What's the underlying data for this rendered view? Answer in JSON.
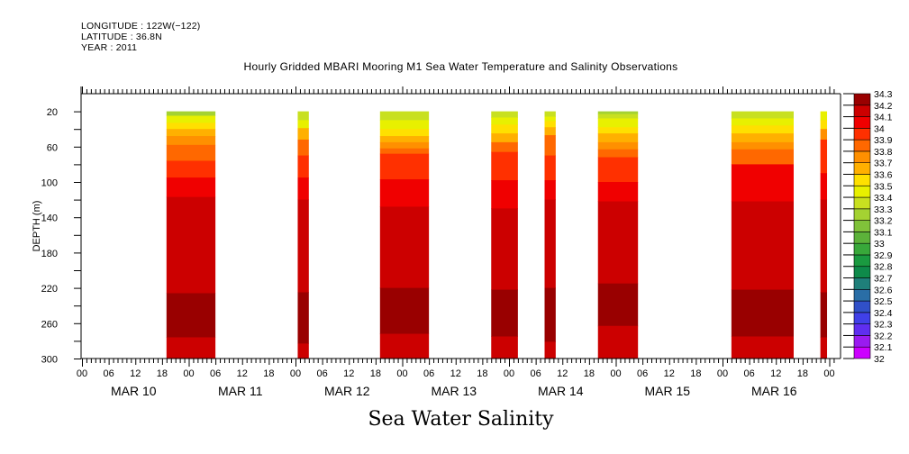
{
  "header": {
    "longitude": "LONGITUDE : 122W(−122)",
    "latitude": "LATITUDE : 36.8N",
    "year": "YEAR : 2011"
  },
  "chart_data": {
    "type": "heatmap",
    "title": "Hourly Gridded MBARI Mooring M1 Sea Water Temperature and Salinity Observations",
    "bottom_title": "Sea Water Salinity",
    "ylabel": "DEPTH (m)",
    "xlabel": "",
    "ylim": [
      0,
      300
    ],
    "y_inverted": true,
    "y_ticks": [
      20,
      60,
      100,
      140,
      180,
      220,
      260,
      300
    ],
    "x_range_hours": [
      0,
      169
    ],
    "x_origin": "MAR 10 00:00",
    "x_tick_labels": [
      "00",
      "06",
      "12",
      "18",
      "00",
      "06",
      "12",
      "18",
      "00",
      "06",
      "12",
      "18",
      "00",
      "06",
      "12",
      "18",
      "00",
      "06",
      "12",
      "18",
      "00",
      "06",
      "12",
      "18",
      "00",
      "06",
      "12",
      "18",
      "00"
    ],
    "day_labels": [
      "MAR 10",
      "MAR 11",
      "MAR 12",
      "MAR 13",
      "MAR 14",
      "MAR 15",
      "MAR 16"
    ],
    "colorbar": {
      "levels": [
        32,
        32.1,
        32.2,
        32.3,
        32.4,
        32.5,
        32.6,
        32.7,
        32.8,
        32.9,
        33,
        33.1,
        33.2,
        33.3,
        33.4,
        33.5,
        33.6,
        33.7,
        33.8,
        33.9,
        34,
        34.1,
        34.2,
        34.3
      ],
      "colors": [
        "#cc00ff",
        "#9a1bf0",
        "#5f2ef0",
        "#4040e8",
        "#3050c8",
        "#2a6ea6",
        "#1f7f7a",
        "#0e8a4a",
        "#1a9a40",
        "#38a83a",
        "#5cb23a",
        "#80c23a",
        "#a4d232",
        "#c8e020",
        "#e8f000",
        "#ffe000",
        "#ffb000",
        "#ff9000",
        "#ff6800",
        "#ff3000",
        "#f00000",
        "#cc0000",
        "#990000"
      ]
    },
    "observation_blocks": [
      {
        "start_hour": 19,
        "end_hour": 30,
        "profile_top_to_bottom": [
          {
            "value_band": "33.2-33.3",
            "to_depth": 25
          },
          {
            "value_band": "33.4-33.5",
            "to_depth": 33
          },
          {
            "value_band": "33.5-33.6",
            "to_depth": 40
          },
          {
            "value_band": "33.6-33.7",
            "to_depth": 48
          },
          {
            "value_band": "33.7-33.8",
            "to_depth": 58
          },
          {
            "value_band": "33.8-33.9",
            "to_depth": 76
          },
          {
            "value_band": "33.9-34.0",
            "to_depth": 95
          },
          {
            "value_band": "34.0-34.1",
            "to_depth": 117
          },
          {
            "value_band": "34.1-34.2",
            "to_depth": 226
          },
          {
            "value_band": "34.2-34.3",
            "to_depth": 276
          },
          {
            "value_band": "34.1-34.2",
            "to_depth": 300
          }
        ]
      },
      {
        "start_hour": 48.5,
        "end_hour": 51,
        "profile_top_to_bottom": [
          {
            "value_band": "33.3-33.4",
            "to_depth": 30
          },
          {
            "value_band": "33.4-33.5",
            "to_depth": 39
          },
          {
            "value_band": "33.6-33.7",
            "to_depth": 52
          },
          {
            "value_band": "33.8-33.9",
            "to_depth": 70
          },
          {
            "value_band": "33.9-34.0",
            "to_depth": 95
          },
          {
            "value_band": "34.0-34.1",
            "to_depth": 120
          },
          {
            "value_band": "34.1-34.2",
            "to_depth": 225
          },
          {
            "value_band": "34.2-34.3",
            "to_depth": 283
          },
          {
            "value_band": "34.1-34.2",
            "to_depth": 300
          }
        ]
      },
      {
        "start_hour": 67,
        "end_hour": 78,
        "profile_top_to_bottom": [
          {
            "value_band": "33.3-33.4",
            "to_depth": 30
          },
          {
            "value_band": "33.4-33.5",
            "to_depth": 40
          },
          {
            "value_band": "33.5-33.6",
            "to_depth": 48
          },
          {
            "value_band": "33.6-33.7",
            "to_depth": 55
          },
          {
            "value_band": "33.7-33.8",
            "to_depth": 62
          },
          {
            "value_band": "33.8-33.9",
            "to_depth": 68
          },
          {
            "value_band": "33.9-34.0",
            "to_depth": 97
          },
          {
            "value_band": "34.0-34.1",
            "to_depth": 128
          },
          {
            "value_band": "34.1-34.2",
            "to_depth": 220
          },
          {
            "value_band": "34.2-34.3",
            "to_depth": 272
          },
          {
            "value_band": "34.1-34.2",
            "to_depth": 300
          }
        ]
      },
      {
        "start_hour": 92,
        "end_hour": 98,
        "profile_top_to_bottom": [
          {
            "value_band": "33.3-33.4",
            "to_depth": 27
          },
          {
            "value_band": "33.4-33.5",
            "to_depth": 35
          },
          {
            "value_band": "33.5-33.6",
            "to_depth": 45
          },
          {
            "value_band": "33.6-33.7",
            "to_depth": 55
          },
          {
            "value_band": "33.8-33.9",
            "to_depth": 66
          },
          {
            "value_band": "33.9-34.0",
            "to_depth": 98
          },
          {
            "value_band": "34.0-34.1",
            "to_depth": 130
          },
          {
            "value_band": "34.1-34.2",
            "to_depth": 222
          },
          {
            "value_band": "34.2-34.3",
            "to_depth": 275
          },
          {
            "value_band": "34.1-34.2",
            "to_depth": 300
          }
        ]
      },
      {
        "start_hour": 104,
        "end_hour": 106.5,
        "profile_top_to_bottom": [
          {
            "value_band": "33.3-33.4",
            "to_depth": 26
          },
          {
            "value_band": "33.4-33.5",
            "to_depth": 31
          },
          {
            "value_band": "33.5-33.6",
            "to_depth": 38
          },
          {
            "value_band": "33.6-33.7",
            "to_depth": 47
          },
          {
            "value_band": "33.8-33.9",
            "to_depth": 70
          },
          {
            "value_band": "33.9-34.0",
            "to_depth": 98
          },
          {
            "value_band": "34.0-34.1",
            "to_depth": 120
          },
          {
            "value_band": "34.1-34.2",
            "to_depth": 220
          },
          {
            "value_band": "34.2-34.3",
            "to_depth": 281
          },
          {
            "value_band": "34.1-34.2",
            "to_depth": 300
          }
        ]
      },
      {
        "start_hour": 116,
        "end_hour": 125,
        "profile_top_to_bottom": [
          {
            "value_band": "33.2-33.3",
            "to_depth": 23
          },
          {
            "value_band": "33.3-33.4",
            "to_depth": 28
          },
          {
            "value_band": "33.4-33.5",
            "to_depth": 38
          },
          {
            "value_band": "33.5-33.6",
            "to_depth": 45
          },
          {
            "value_band": "33.6-33.7",
            "to_depth": 55
          },
          {
            "value_band": "33.7-33.8",
            "to_depth": 63
          },
          {
            "value_band": "33.8-33.9",
            "to_depth": 72
          },
          {
            "value_band": "33.9-34.0",
            "to_depth": 100
          },
          {
            "value_band": "34.0-34.1",
            "to_depth": 122
          },
          {
            "value_band": "34.1-34.2",
            "to_depth": 215
          },
          {
            "value_band": "34.2-34.3",
            "to_depth": 263
          },
          {
            "value_band": "34.1-34.2",
            "to_depth": 300
          }
        ]
      },
      {
        "start_hour": 146,
        "end_hour": 160,
        "profile_top_to_bottom": [
          {
            "value_band": "33.3-33.4",
            "to_depth": 28
          },
          {
            "value_band": "33.4-33.5",
            "to_depth": 36
          },
          {
            "value_band": "33.5-33.6",
            "to_depth": 45
          },
          {
            "value_band": "33.6-33.7",
            "to_depth": 55
          },
          {
            "value_band": "33.7-33.8",
            "to_depth": 63
          },
          {
            "value_band": "33.8-33.9",
            "to_depth": 80
          },
          {
            "value_band": "34.0-34.1",
            "to_depth": 122
          },
          {
            "value_band": "34.1-34.2",
            "to_depth": 222
          },
          {
            "value_band": "34.2-34.3",
            "to_depth": 275
          },
          {
            "value_band": "34.1-34.2",
            "to_depth": 300
          }
        ]
      },
      {
        "start_hour": 166,
        "end_hour": 167.5,
        "profile_top_to_bottom": [
          {
            "value_band": "33.4-33.5",
            "to_depth": 30
          },
          {
            "value_band": "33.5-33.6",
            "to_depth": 40
          },
          {
            "value_band": "33.7-33.8",
            "to_depth": 52
          },
          {
            "value_band": "33.9-34.0",
            "to_depth": 90
          },
          {
            "value_band": "34.0-34.1",
            "to_depth": 120
          },
          {
            "value_band": "34.1-34.2",
            "to_depth": 225
          },
          {
            "value_band": "34.2-34.3",
            "to_depth": 276
          },
          {
            "value_band": "34.1-34.2",
            "to_depth": 300
          }
        ]
      }
    ]
  }
}
